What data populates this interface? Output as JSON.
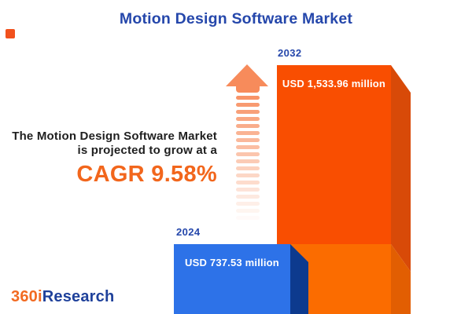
{
  "title": "Motion Design Software Market",
  "description": {
    "line1": "The Motion Design Software Market",
    "line2": "is projected to grow at a",
    "cagr": "CAGR 9.58%"
  },
  "chart_data": {
    "type": "bar",
    "title": "Motion Design Software Market",
    "categories": [
      "2024",
      "2032"
    ],
    "values": [
      737.53,
      1533.96
    ],
    "unit": "USD million",
    "value_labels": [
      "USD 737.53 million",
      "USD 1,533.96 million"
    ],
    "cagr_percent": 9.58,
    "legend": "none",
    "axes": "hidden",
    "layout": "two 3D bars, smaller blue 2024 bar in front-left, larger orange 2032 bar behind-right, growth arrow to the left of 2032 bar",
    "colors": {
      "bar_2024_face": "#2d72e8",
      "bar_2024_side": "#0d3a8e",
      "bar_2032_face_upper": "#f94e01",
      "bar_2032_face_lower": "#fb6c00",
      "bar_2032_side_upper": "#d84a08",
      "bar_2032_side_lower": "#e25e02",
      "year_label": "#2547ab",
      "value_label": "#ffffff"
    }
  },
  "growth_arrow": {
    "direction": "up",
    "style": "solid head with fading horizontal stripes",
    "color": "#f78b5b"
  },
  "logo": {
    "part1": "360i",
    "part2": "Research",
    "part1_color": "#f26a21",
    "part2_color": "#1f419b"
  },
  "accents": {
    "corner_square_color": "#f1511d",
    "title_color": "#2547ab",
    "cagr_color": "#f2661c",
    "body_text_color": "#1f1f1f"
  }
}
